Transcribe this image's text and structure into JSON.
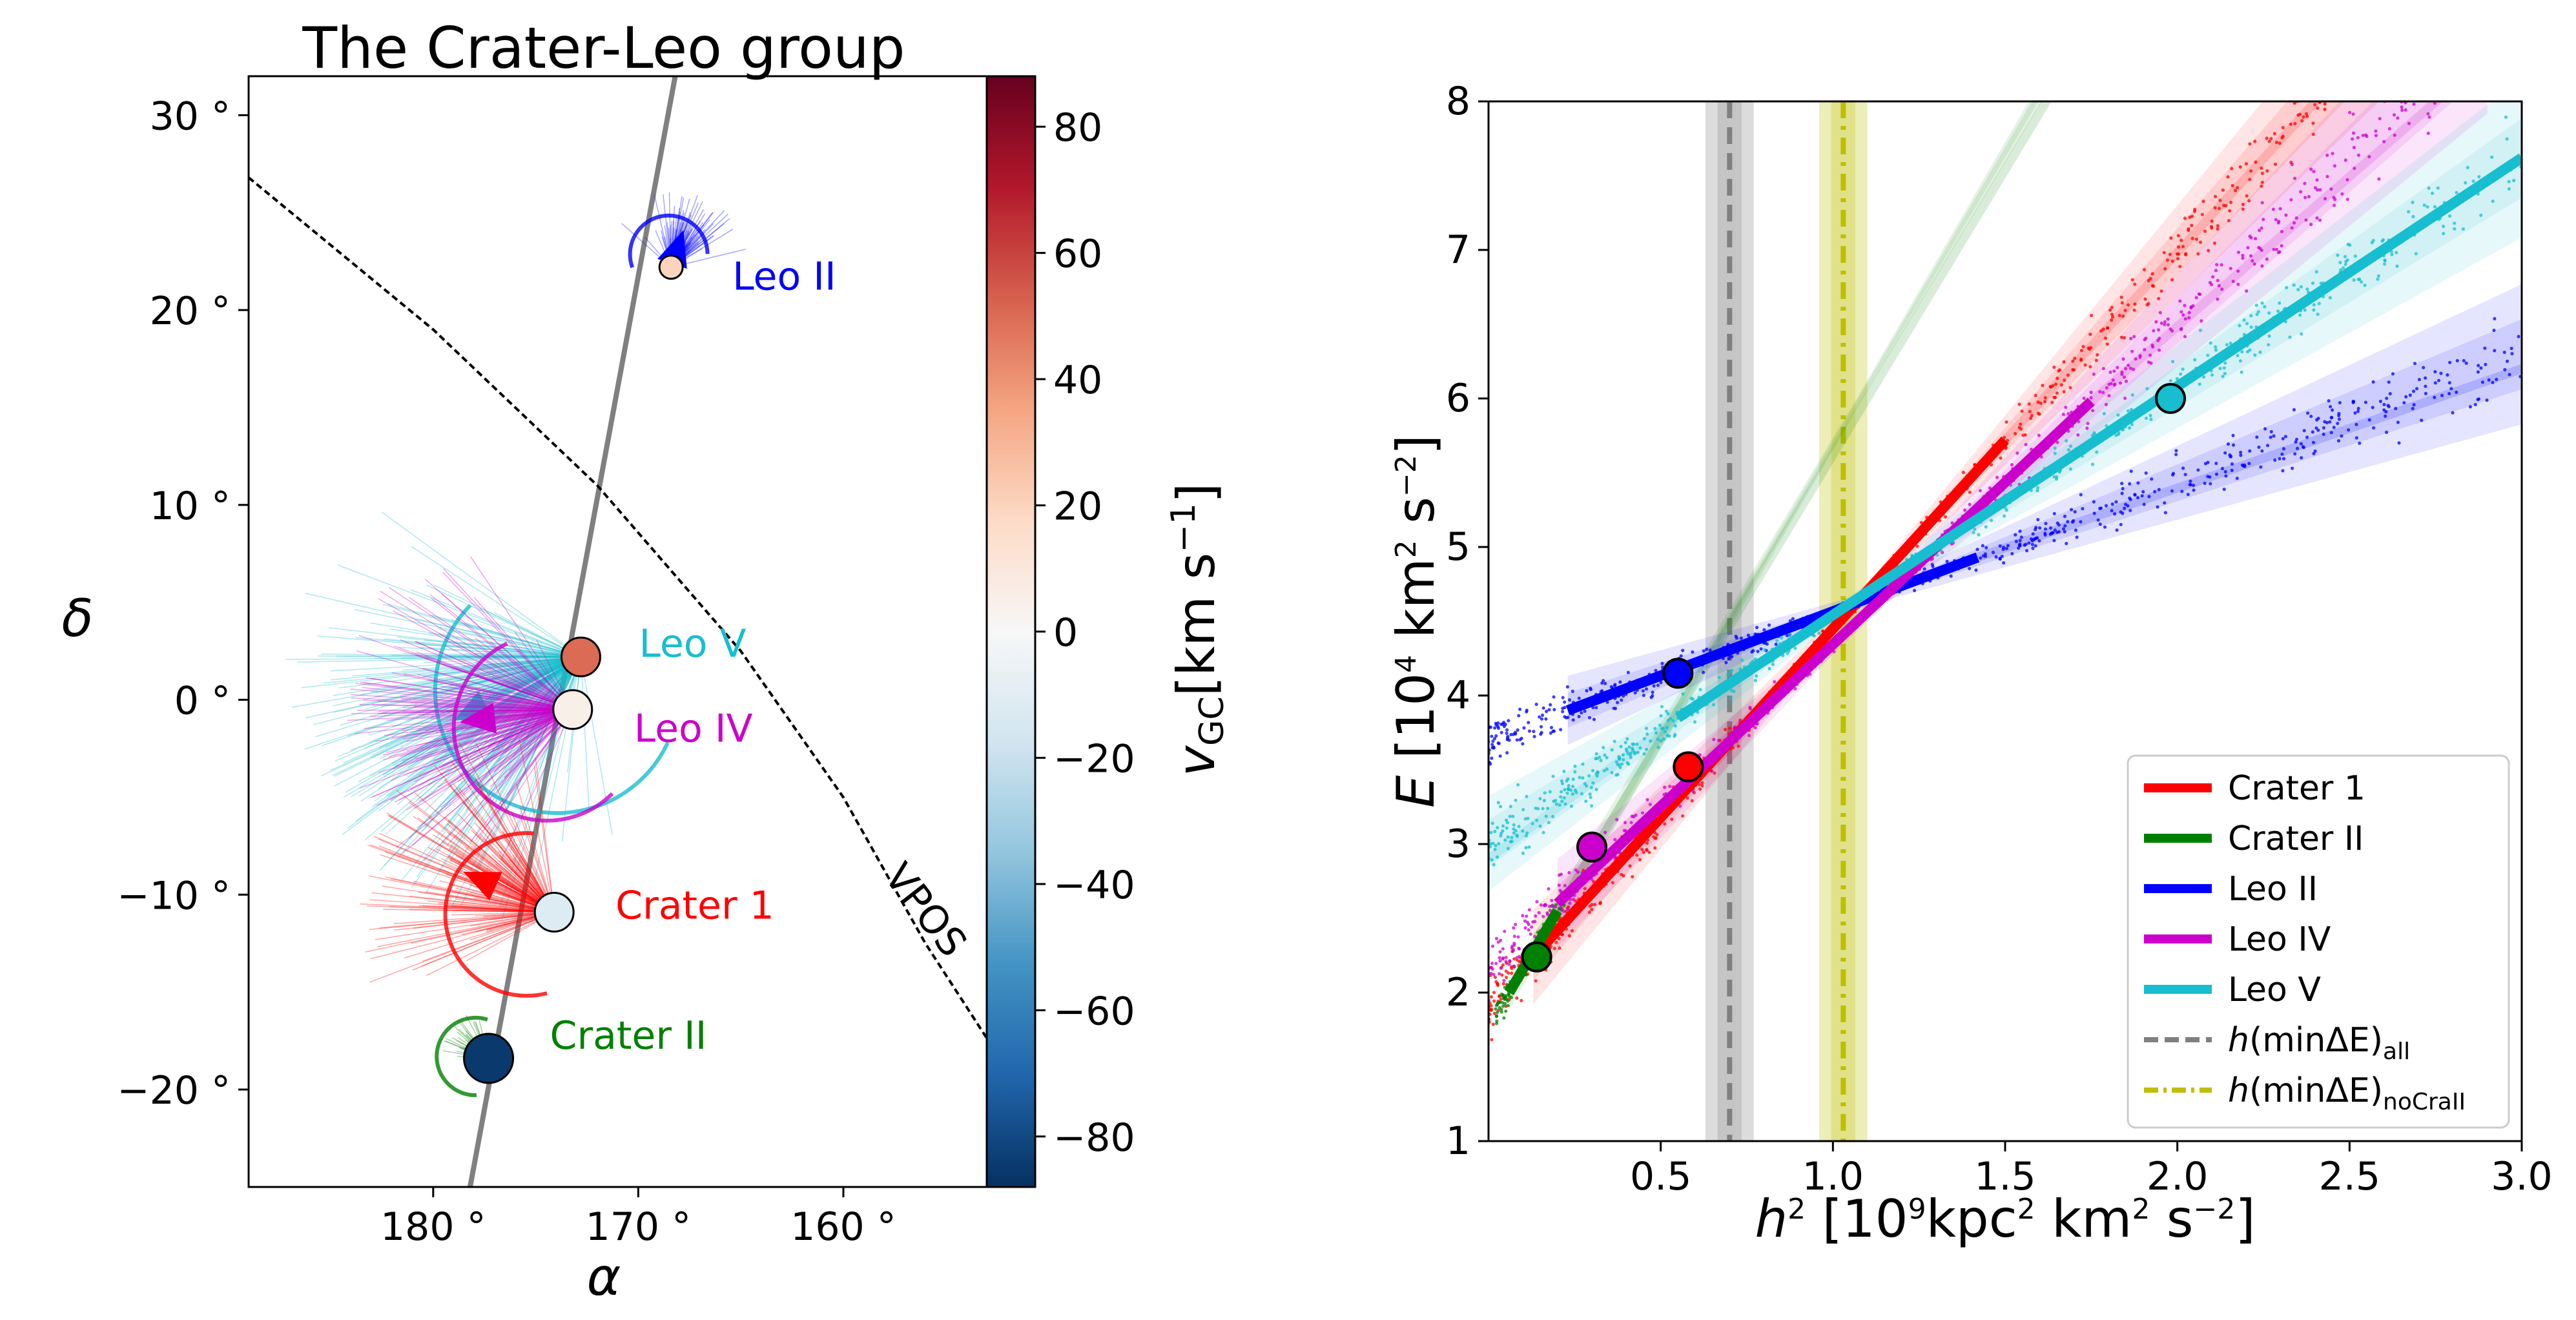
{
  "chart_data": [
    {
      "type": "scatter",
      "title": "The Crater-Leo group",
      "xlabel": "α",
      "ylabel": "δ",
      "xlim": [
        189,
        152
      ],
      "ylim": [
        -25,
        32
      ],
      "xticks": [
        {
          "v": 180,
          "label": "180 °"
        },
        {
          "v": 170,
          "label": "170 °"
        },
        {
          "v": 160,
          "label": "160 °"
        }
      ],
      "yticks": [
        {
          "v": 30,
          "label": "30 °"
        },
        {
          "v": 20,
          "label": "20 °"
        },
        {
          "v": 10,
          "label": "10 °"
        },
        {
          "v": 0,
          "label": "0 °"
        },
        {
          "v": -10,
          "label": "−10 °"
        },
        {
          "v": -20,
          "label": "−20 °"
        }
      ],
      "objects": [
        {
          "name": "Leo II",
          "ra": 168.4,
          "dec": 22.2,
          "vgc": 20,
          "color": "#0000ff",
          "motion_dir": [
            0.3,
            0.9
          ],
          "marker": "small"
        },
        {
          "name": "Leo V",
          "ra": 172.8,
          "dec": 2.2,
          "vgc": 50,
          "color": "#17becf",
          "motion_dir": [
            -0.8,
            -0.4
          ],
          "marker": "medium"
        },
        {
          "name": "Leo IV",
          "ra": 173.2,
          "dec": -0.5,
          "vgc": 5,
          "color": "#cc00cc",
          "motion_dir": [
            -0.9,
            -0.1
          ],
          "marker": "medium"
        },
        {
          "name": "Crater 1",
          "ra": 174.1,
          "dec": -10.9,
          "vgc": -12,
          "color": "#ff0000",
          "motion_dir": [
            -0.9,
            0.4
          ],
          "marker": "medium"
        },
        {
          "name": "Crater II",
          "ra": 177.3,
          "dec": -18.4,
          "vgc": -85,
          "color": "#008000",
          "motion_dir": [
            -0.8,
            0.6
          ],
          "marker": "large"
        }
      ],
      "great_circle": [
        [
          178.2,
          -25
        ],
        [
          168.2,
          32
        ]
      ],
      "vpos_label": "VPOS",
      "vpos_curve": [
        [
          189,
          26.8
        ],
        [
          180,
          19.0
        ],
        [
          172,
          11.0
        ],
        [
          165,
          2.5
        ],
        [
          160,
          -5.0
        ],
        [
          156,
          -12.5
        ],
        [
          152,
          -19.0
        ]
      ],
      "colorbar": {
        "label_main": "v",
        "label_sub": "GC",
        "label_unit": "[km s",
        "label_exp": "−1",
        "label_close": "]",
        "min": -88,
        "max": 88,
        "ticks": [
          {
            "v": 80,
            "label": "80"
          },
          {
            "v": 60,
            "label": "60"
          },
          {
            "v": 40,
            "label": "40"
          },
          {
            "v": 20,
            "label": "20"
          },
          {
            "v": 0,
            "label": "0"
          },
          {
            "v": -20,
            "label": "−20"
          },
          {
            "v": -40,
            "label": "−40"
          },
          {
            "v": -60,
            "label": "−60"
          },
          {
            "v": -80,
            "label": "−80"
          }
        ],
        "colors": [
          "#053061",
          "#2166ac",
          "#4393c3",
          "#92c5de",
          "#d1e5f0",
          "#f7f7f7",
          "#fddbc7",
          "#f4a582",
          "#d6604d",
          "#b2182b",
          "#67001f"
        ]
      }
    },
    {
      "type": "line",
      "xlabel_main": "h",
      "xlabel_exp": "2",
      "xlabel_rest": " [10",
      "xlabel_exp2": "9",
      "xlabel_unit": "kpc",
      "xlabel_exp3": "2",
      "xlabel_unit2": " km",
      "xlabel_exp4": "2",
      "xlabel_unit3": " s",
      "xlabel_exp5": "−2",
      "xlabel_close": "]",
      "ylabel_main": "E",
      "ylabel_rest": " [10",
      "ylabel_exp": "4",
      "ylabel_unit": " km",
      "ylabel_exp2": "2",
      "ylabel_unit2": " s",
      "ylabel_exp3": "−2",
      "ylabel_close": "]",
      "xlim": [
        0,
        3.0
      ],
      "ylim": [
        1,
        8
      ],
      "xticks": [
        {
          "v": 0.5,
          "label": "0.5"
        },
        {
          "v": 1.0,
          "label": "1.0"
        },
        {
          "v": 1.5,
          "label": "1.5"
        },
        {
          "v": 2.0,
          "label": "2.0"
        },
        {
          "v": 2.5,
          "label": "2.5"
        },
        {
          "v": 3.0,
          "label": "3.0"
        }
      ],
      "yticks": [
        {
          "v": 1,
          "label": "1"
        },
        {
          "v": 2,
          "label": "2"
        },
        {
          "v": 3,
          "label": "3"
        },
        {
          "v": 4,
          "label": "4"
        },
        {
          "v": 5,
          "label": "5"
        },
        {
          "v": 6,
          "label": "6"
        },
        {
          "v": 7,
          "label": "7"
        },
        {
          "v": 8,
          "label": "8"
        }
      ],
      "series": [
        {
          "name": "Crater 1",
          "color": "#ff0000",
          "line": [
            [
              0.13,
              2.24
            ],
            [
              1.5,
              5.72
            ]
          ],
          "extrap": [
            [
              1.5,
              5.72
            ],
            [
              2.6,
              8.5
            ]
          ],
          "point": [
            0.58,
            3.52
          ],
          "scatter_range": [
            0.0,
            2.6
          ],
          "band": 0.15,
          "spread_grow": 0.18
        },
        {
          "name": "Crater II",
          "color": "#008000",
          "line": [
            [
              0.06,
              2.0
            ],
            [
              0.2,
              2.55
            ]
          ],
          "extrap": [
            [
              0.2,
              2.55
            ],
            [
              1.75,
              8.5
            ]
          ],
          "point": [
            0.14,
            2.24
          ],
          "scatter_range": [
            0.02,
            0.22
          ],
          "band": 0.12,
          "spread_grow": 0.05
        },
        {
          "name": "Leo II",
          "color": "#0000ff",
          "line": [
            [
              0.23,
              3.9
            ],
            [
              1.42,
              4.93
            ]
          ],
          "extrap": [
            [
              1.42,
              4.93
            ],
            [
              3.0,
              6.2
            ]
          ],
          "point": [
            0.55,
            4.15
          ],
          "scatter_range": [
            0.0,
            3.0
          ],
          "band": 0.14,
          "spread_grow": 0.14
        },
        {
          "name": "Leo IV",
          "color": "#cc00cc",
          "line": [
            [
              0.2,
              2.6
            ],
            [
              1.75,
              5.98
            ]
          ],
          "extrap": [
            [
              1.75,
              5.98
            ],
            [
              2.9,
              8.3
            ]
          ],
          "point": [
            0.3,
            2.98
          ],
          "scatter_range": [
            0.0,
            3.0
          ],
          "band": 0.15,
          "spread_grow": 0.18
        },
        {
          "name": "Leo V",
          "color": "#17becf",
          "line": [
            [
              0.55,
              3.85
            ],
            [
              3.0,
              7.62
            ]
          ],
          "extrap": [
            [
              0.0,
              2.9
            ],
            [
              0.55,
              3.85
            ]
          ],
          "point": [
            1.98,
            6.0
          ],
          "scatter_range": [
            0.0,
            3.0
          ],
          "band": 0.15,
          "spread_grow": 0.16
        }
      ],
      "vlines": [
        {
          "name": "h(minΔE)all",
          "x": 0.7,
          "band": 0.07,
          "color": "#808080",
          "style": "dashed"
        },
        {
          "name": "h(minΔE)noCraII",
          "x": 1.03,
          "band": 0.07,
          "color": "#bfbf00",
          "style": "dashdot"
        }
      ],
      "legend": [
        {
          "label": "Crater 1",
          "color": "#ff0000",
          "style": "solid"
        },
        {
          "label": "Crater II",
          "color": "#008000",
          "style": "solid"
        },
        {
          "label": "Leo II",
          "color": "#0000ff",
          "style": "solid"
        },
        {
          "label": "Leo IV",
          "color": "#cc00cc",
          "style": "solid"
        },
        {
          "label": "Leo V",
          "color": "#17becf",
          "style": "solid"
        },
        {
          "label": "h(minΔE)",
          "sub": "all",
          "color": "#808080",
          "style": "dashed"
        },
        {
          "label": "h(minΔE)",
          "sub": "noCraII",
          "color": "#bfbf00",
          "style": "dashdot"
        }
      ],
      "legend_position": "lower-right"
    }
  ]
}
